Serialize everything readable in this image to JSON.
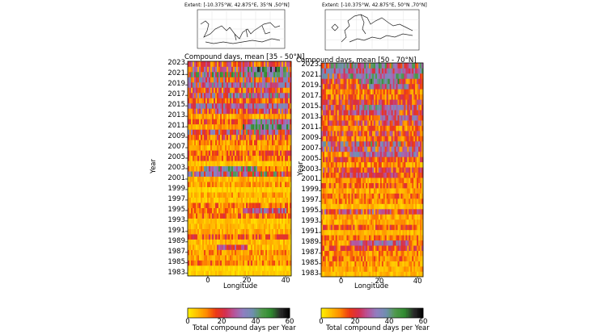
{
  "colors": {
    "scale": [
      "#fff200",
      "#ffc000",
      "#ff8c00",
      "#ee3a12",
      "#d62d4b",
      "#b8539a",
      "#8e7fc2",
      "#6f8fb0",
      "#4f9a4b",
      "#2f8a2f",
      "#2a2a2a",
      "#000000"
    ]
  },
  "chart_data": [
    {
      "type": "heatmap",
      "panel": "left",
      "extent_label": "Extent: [-10.375°W, 42.875°E, 35°N ,50°N]",
      "title": "Compound days, mean [35 - 50°N]",
      "xlabel": "Longitude",
      "ylabel": "Year",
      "xlim": [
        -10.375,
        42.875
      ],
      "ylim": [
        1983,
        2023
      ],
      "xticks": [
        0,
        20,
        40
      ],
      "yticks": [
        "1983",
        "1985",
        "1987",
        "1989",
        "1991",
        "1993",
        "1995",
        "1997",
        "1999",
        "2001",
        "2003",
        "2005",
        "2007",
        "2009",
        "2011",
        "2013",
        "2015",
        "2017",
        "2019",
        "2021",
        "2023"
      ],
      "row_means": [
        4,
        3,
        12,
        8,
        10,
        6,
        6,
        14,
        7,
        6,
        5,
        13,
        10,
        12,
        6,
        8,
        4,
        9,
        7,
        28,
        10,
        5,
        12,
        14,
        8,
        11,
        16,
        26,
        8,
        15,
        9,
        20,
        24,
        14,
        22,
        18,
        28,
        24,
        30,
        22,
        18
      ],
      "hot_spans": [
        [
          2003,
          -2,
          25,
          36
        ],
        [
          2011,
          18,
          42,
          40
        ],
        [
          2012,
          22,
          42,
          34
        ],
        [
          2015,
          -10,
          42,
          30
        ],
        [
          2017,
          10,
          42,
          34
        ],
        [
          2019,
          0,
          42,
          32
        ],
        [
          2021,
          20,
          42,
          38
        ],
        [
          2022,
          20,
          40,
          44
        ],
        [
          1995,
          18,
          40,
          30
        ],
        [
          1988,
          5,
          20,
          26
        ]
      ],
      "colorbar": {
        "label": "Total compound days per Year",
        "ticks": [
          "0",
          "20",
          "40",
          "60"
        ],
        "range": [
          0,
          60
        ]
      }
    },
    {
      "type": "heatmap",
      "panel": "right",
      "extent_label": "Extent: [-10.375°W, 42.875°E, 50°N ,70°N]",
      "title": "Compound days, mean [50 - 70°N]",
      "xlabel": "Longitude",
      "ylabel": "Year",
      "xlim": [
        -10.375,
        42.875
      ],
      "ylim": [
        1983,
        2023
      ],
      "xticks": [
        0,
        20,
        40
      ],
      "yticks": [
        "1983",
        "1985",
        "1987",
        "1989",
        "1991",
        "1993",
        "1995",
        "1997",
        "1999",
        "2001",
        "2003",
        "2005",
        "2007",
        "2009",
        "2011",
        "2013",
        "2015",
        "2017",
        "2019",
        "2021",
        "2023"
      ],
      "row_means": [
        6,
        8,
        10,
        12,
        10,
        16,
        10,
        12,
        6,
        14,
        8,
        8,
        20,
        6,
        10,
        12,
        8,
        14,
        10,
        12,
        18,
        10,
        16,
        10,
        22,
        26,
        14,
        18,
        12,
        20,
        14,
        16,
        22,
        18,
        14,
        12,
        18,
        16,
        24,
        30,
        28
      ],
      "hot_spans": [
        [
          1989,
          5,
          35,
          30
        ],
        [
          2002,
          0,
          30,
          24
        ],
        [
          2006,
          5,
          40,
          30
        ],
        [
          2014,
          0,
          30,
          26
        ],
        [
          2015,
          10,
          30,
          34
        ],
        [
          2019,
          15,
          35,
          32
        ],
        [
          2020,
          10,
          30,
          40
        ],
        [
          2021,
          0,
          40,
          36
        ],
        [
          2022,
          -10,
          42,
          30
        ],
        [
          2013,
          20,
          40,
          28
        ]
      ],
      "colorbar": {
        "label": "Total compound days per Year",
        "ticks": [
          "0",
          "20",
          "40",
          "60"
        ],
        "range": [
          0,
          60
        ]
      }
    }
  ]
}
